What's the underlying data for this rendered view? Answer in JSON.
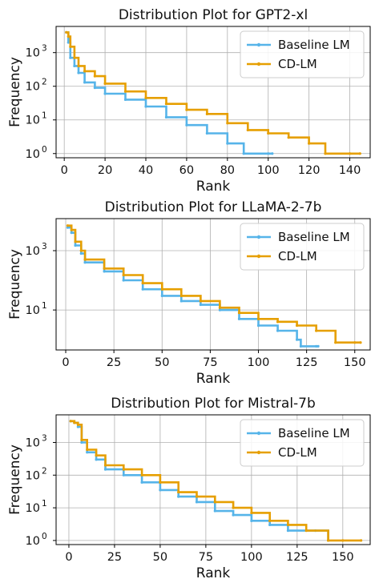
{
  "colors": {
    "baseline": "#56b4e9",
    "cdlm": "#e69f00"
  },
  "chart_data": [
    {
      "type": "line",
      "title": "Distribution Plot for GPT2-xl",
      "xlabel": "Rank",
      "ylabel": "Frequency",
      "yscale": "log",
      "xlim": [
        -4,
        150
      ],
      "ylim": [
        0.75,
        6000
      ],
      "xticks": [
        0,
        20,
        40,
        60,
        80,
        100,
        120,
        140
      ],
      "yticks": [
        {
          "v": 1,
          "b": "10",
          "e": "0"
        },
        {
          "v": 10,
          "b": "10",
          "e": "1"
        },
        {
          "v": 100,
          "b": "10",
          "e": "2"
        },
        {
          "v": 1000,
          "b": "10",
          "e": "3"
        }
      ],
      "grid": true,
      "legend": "top-right",
      "series": [
        {
          "name": "Baseline LM",
          "x": [
            1,
            2,
            3,
            5,
            7,
            10,
            15,
            20,
            30,
            40,
            50,
            60,
            70,
            80,
            88,
            100,
            102
          ],
          "values": [
            4000,
            2000,
            700,
            400,
            250,
            130,
            90,
            60,
            40,
            25,
            12,
            7,
            4,
            2,
            1,
            1,
            1
          ]
        },
        {
          "name": "CD-LM",
          "x": [
            1,
            2,
            3,
            5,
            7,
            10,
            15,
            20,
            30,
            40,
            50,
            60,
            70,
            80,
            90,
            100,
            110,
            120,
            128,
            140,
            145
          ],
          "values": [
            4000,
            3000,
            1500,
            700,
            400,
            280,
            200,
            120,
            70,
            45,
            30,
            20,
            15,
            8,
            5,
            4,
            3,
            2,
            1,
            1,
            1
          ]
        }
      ]
    },
    {
      "type": "line",
      "title": "Distribution Plot for LLaMA-2-7b",
      "xlabel": "Rank",
      "ylabel": "Frequency",
      "yscale": "log",
      "xlim": [
        -5,
        158
      ],
      "ylim": [
        0.45,
        12000
      ],
      "xticks": [
        0,
        25,
        50,
        75,
        100,
        125,
        150
      ],
      "yticks": [
        {
          "v": 10,
          "b": "10",
          "e": "1"
        },
        {
          "v": 1000,
          "b": "10",
          "e": "3"
        }
      ],
      "grid": true,
      "legend": "top-right",
      "series": [
        {
          "name": "Baseline LM",
          "x": [
            1,
            3,
            5,
            8,
            10,
            20,
            30,
            40,
            50,
            60,
            70,
            80,
            90,
            100,
            110,
            120,
            122,
            130,
            131
          ],
          "values": [
            6000,
            4000,
            1500,
            800,
            400,
            200,
            100,
            50,
            30,
            20,
            15,
            10,
            5,
            3,
            2,
            1,
            0.6,
            0.6,
            0.6
          ]
        },
        {
          "name": "CD-LM",
          "x": [
            1,
            3,
            5,
            8,
            10,
            20,
            30,
            40,
            50,
            60,
            70,
            80,
            90,
            100,
            110,
            120,
            130,
            140,
            150,
            153
          ],
          "values": [
            7000,
            5000,
            2000,
            1000,
            500,
            250,
            150,
            80,
            50,
            30,
            20,
            12,
            8,
            5,
            4,
            3,
            2,
            0.8,
            0.8,
            0.8
          ]
        }
      ]
    },
    {
      "type": "line",
      "title": "Distribution Plot for Mistral-7b",
      "xlabel": "Rank",
      "ylabel": "Frequency",
      "yscale": "log",
      "xlim": [
        -7,
        165
      ],
      "ylim": [
        0.75,
        7000
      ],
      "xticks": [
        0,
        25,
        50,
        75,
        100,
        125,
        150
      ],
      "yticks": [
        {
          "v": 1,
          "b": "10",
          "e": "0"
        },
        {
          "v": 10,
          "b": "10",
          "e": "1"
        },
        {
          "v": 100,
          "b": "10",
          "e": "2"
        },
        {
          "v": 1000,
          "b": "10",
          "e": "3"
        }
      ],
      "grid": true,
      "legend": "top-right",
      "series": [
        {
          "name": "Baseline LM",
          "x": [
            1,
            3,
            5,
            7,
            10,
            15,
            20,
            30,
            40,
            50,
            60,
            70,
            80,
            90,
            100,
            110,
            120,
            135,
            142
          ],
          "values": [
            4500,
            4000,
            3000,
            1000,
            500,
            300,
            150,
            100,
            60,
            35,
            22,
            15,
            8,
            6,
            4,
            3,
            2,
            2,
            1
          ]
        },
        {
          "name": "CD-LM",
          "x": [
            1,
            3,
            5,
            7,
            10,
            15,
            20,
            30,
            40,
            50,
            60,
            70,
            80,
            90,
            100,
            110,
            120,
            130,
            142,
            150,
            160
          ],
          "values": [
            4500,
            4000,
            3500,
            1200,
            600,
            400,
            200,
            150,
            100,
            60,
            30,
            22,
            15,
            10,
            7,
            4,
            3,
            2,
            1,
            1,
            1
          ]
        }
      ]
    }
  ]
}
